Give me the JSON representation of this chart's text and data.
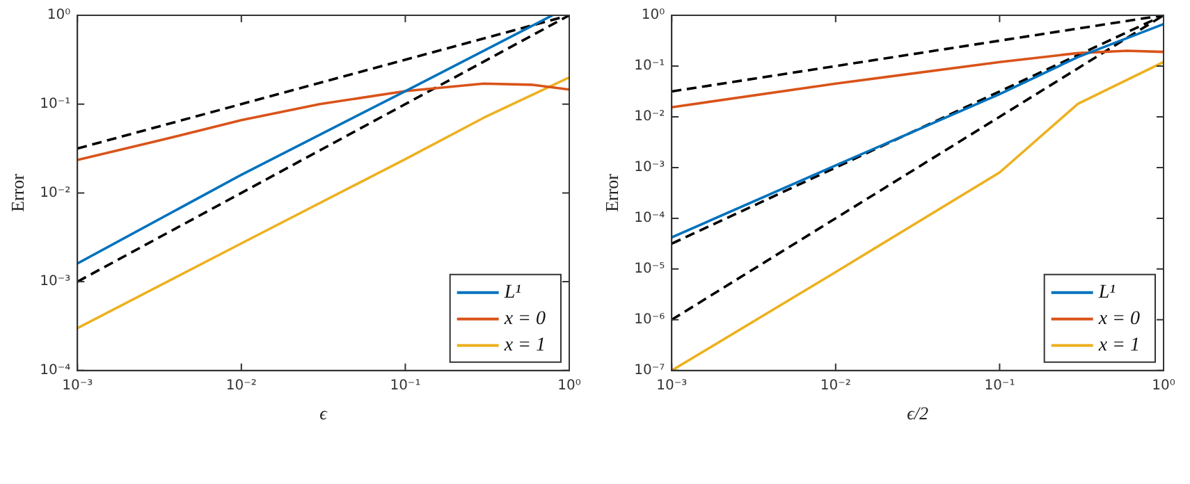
{
  "chart_data": [
    {
      "type": "line",
      "xlabel": "ϵ",
      "ylabel": "Error",
      "log": "xy",
      "legend": "bottom right",
      "grid": false,
      "marker": "none",
      "xlim": [
        0.001,
        1
      ],
      "ylim": [
        0.0001,
        1
      ],
      "xticks": [
        {
          "value": 0.001,
          "label": "10⁻³"
        },
        {
          "value": 0.01,
          "label": "10⁻²"
        },
        {
          "value": 0.1,
          "label": "10⁻¹"
        },
        {
          "value": 1,
          "label": "10⁰"
        }
      ],
      "yticks": [
        {
          "value": 0.0001,
          "label": "10⁻⁴"
        },
        {
          "value": 0.001,
          "label": "10⁻³"
        },
        {
          "value": 0.01,
          "label": "10⁻²"
        },
        {
          "value": 0.1,
          "label": "10⁻¹"
        },
        {
          "value": 1,
          "label": "10⁰"
        }
      ],
      "series": [
        {
          "name": "L¹",
          "color": "#0072bd",
          "x": [
            0.001,
            0.01,
            0.1,
            0.79
          ],
          "values": [
            0.0016,
            0.016,
            0.14,
            1
          ]
        },
        {
          "name": "x = 0",
          "color": "#d95319",
          "x": [
            0.001,
            0.003,
            0.01,
            0.03,
            0.1,
            0.3,
            0.6,
            1
          ],
          "values": [
            0.0235,
            0.038,
            0.066,
            0.1,
            0.14,
            0.17,
            0.165,
            0.146
          ]
        },
        {
          "name": "x = 1",
          "color": "#edb120",
          "x": [
            0.001,
            0.01,
            0.1,
            0.3,
            1
          ],
          "values": [
            0.0003,
            0.0027,
            0.024,
            0.07,
            0.2
          ]
        },
        {
          "color": "#000000",
          "line_style": "dashed",
          "x": [
            0.001,
            1
          ],
          "values": [
            0.0316,
            1
          ]
        },
        {
          "color": "#000000",
          "line_style": "dashed",
          "x": [
            0.001,
            1
          ],
          "values": [
            0.001,
            1
          ]
        }
      ]
    },
    {
      "type": "line",
      "xlabel": "ϵ/2",
      "ylabel": "Error",
      "log": "xy",
      "legend": "bottom right",
      "grid": false,
      "marker": "none",
      "xlim": [
        0.001,
        1
      ],
      "ylim": [
        1e-07,
        1
      ],
      "xticks": [
        {
          "value": 0.001,
          "label": "10⁻³"
        },
        {
          "value": 0.01,
          "label": "10⁻²"
        },
        {
          "value": 0.1,
          "label": "10⁻¹"
        },
        {
          "value": 1,
          "label": "10⁰"
        }
      ],
      "yticks": [
        {
          "value": 1e-07,
          "label": "10⁻⁷"
        },
        {
          "value": 1e-06,
          "label": "10⁻⁶"
        },
        {
          "value": 1e-05,
          "label": "10⁻⁵"
        },
        {
          "value": 0.0001,
          "label": "10⁻⁴"
        },
        {
          "value": 0.001,
          "label": "10⁻³"
        },
        {
          "value": 0.01,
          "label": "10⁻²"
        },
        {
          "value": 0.1,
          "label": "10⁻¹"
        },
        {
          "value": 1,
          "label": "10⁰"
        }
      ],
      "series": [
        {
          "name": "L¹",
          "color": "#0072bd",
          "x": [
            0.001,
            0.01,
            0.1,
            0.3,
            1
          ],
          "values": [
            4.2e-05,
            0.0011,
            0.028,
            0.15,
            0.67
          ]
        },
        {
          "name": "x = 0",
          "color": "#d95319",
          "x": [
            0.001,
            0.01,
            0.1,
            0.3,
            0.6,
            1
          ],
          "values": [
            0.0154,
            0.045,
            0.12,
            0.18,
            0.2,
            0.19
          ]
        },
        {
          "name": "x = 1",
          "color": "#edb120",
          "x": [
            0.001,
            0.01,
            0.1,
            0.3,
            1
          ],
          "values": [
            1e-07,
            8.7e-06,
            0.0008,
            0.018,
            0.12
          ]
        },
        {
          "color": "#000000",
          "line_style": "dashed",
          "x": [
            0.001,
            1
          ],
          "values": [
            0.0316,
            1
          ]
        },
        {
          "color": "#000000",
          "line_style": "dashed",
          "x": [
            0.001,
            1
          ],
          "values": [
            3.16e-05,
            1
          ]
        },
        {
          "color": "#000000",
          "line_style": "dashed",
          "x": [
            0.001,
            1
          ],
          "values": [
            1e-06,
            1
          ]
        }
      ]
    }
  ]
}
